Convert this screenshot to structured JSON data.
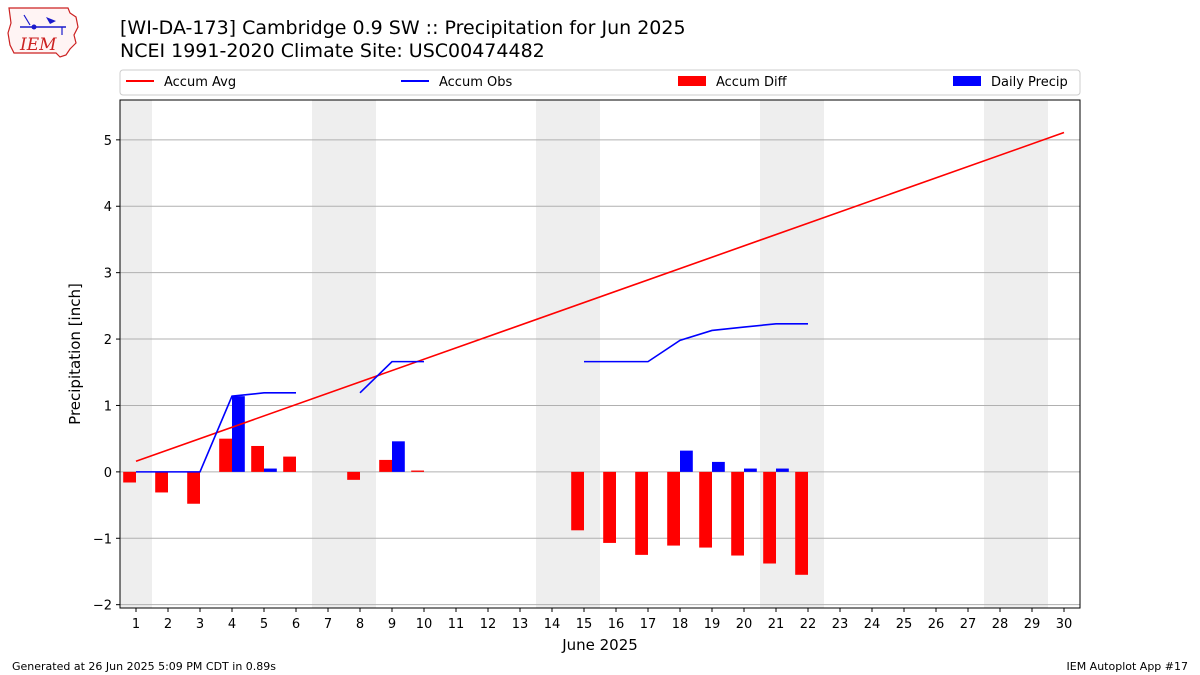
{
  "header": {
    "title_line1": "[WI-DA-173] Cambridge 0.9 SW :: Precipitation for Jun 2025",
    "title_line2": "NCEI 1991-2020 Climate Site: USC00474482",
    "logo_text": "IEM"
  },
  "footer": {
    "left": "Generated at 26 Jun 2025 5:09 PM CDT in 0.89s",
    "right": "IEM Autoplot App #17"
  },
  "colors": {
    "avg": "#ff0000",
    "obs": "#0000ff",
    "diff": "#ff0000",
    "daily": "#0000ff",
    "weekend": "#eeeeee",
    "grid": "#b0b0b0"
  },
  "chart_data": {
    "type": "bar",
    "xlabel": "June 2025",
    "ylabel": "Precipitation [inch]",
    "xlim": [
      0.5,
      30.5
    ],
    "ylim": [
      -2.05,
      5.6
    ],
    "x_ticks": [
      1,
      2,
      3,
      4,
      5,
      6,
      7,
      8,
      9,
      10,
      11,
      12,
      13,
      14,
      15,
      16,
      17,
      18,
      19,
      20,
      21,
      22,
      23,
      24,
      25,
      26,
      27,
      28,
      29,
      30
    ],
    "y_ticks": [
      -2,
      -1,
      0,
      1,
      2,
      3,
      4,
      5
    ],
    "y_tick_labels": [
      "−2",
      "−1",
      "0",
      "1",
      "2",
      "3",
      "4",
      "5"
    ],
    "grid": "horizontal",
    "legend_position": "top",
    "legend": [
      "Accum Avg",
      "Accum Obs",
      "Accum Diff",
      "Daily Precip"
    ],
    "weekend_bands": [
      [
        0.5,
        1.5
      ],
      [
        6.5,
        8.5
      ],
      [
        13.5,
        15.5
      ],
      [
        20.5,
        22.5
      ],
      [
        27.5,
        29.5
      ]
    ],
    "days": [
      1,
      2,
      3,
      4,
      5,
      6,
      7,
      8,
      9,
      10,
      11,
      12,
      13,
      14,
      15,
      16,
      17,
      18,
      19,
      20,
      21,
      22,
      23,
      24,
      25,
      26,
      27,
      28,
      29,
      30
    ],
    "series": [
      {
        "name": "Accum Avg",
        "kind": "line",
        "x": [
          1,
          30
        ],
        "values": [
          0.16,
          5.11
        ]
      },
      {
        "name": "Accum Obs",
        "kind": "line",
        "segments": [
          {
            "x": [
              1,
              2,
              3,
              4,
              5,
              6
            ],
            "values": [
              0.0,
              0.0,
              0.0,
              1.14,
              1.19,
              1.19
            ]
          },
          {
            "x": [
              8,
              9,
              10
            ],
            "values": [
              1.19,
              1.66,
              1.66
            ]
          },
          {
            "x": [
              15,
              16,
              17,
              18,
              19,
              20,
              21,
              22
            ],
            "values": [
              1.66,
              1.66,
              1.66,
              1.98,
              2.13,
              2.18,
              2.23,
              2.23
            ]
          }
        ]
      },
      {
        "name": "Accum Diff",
        "kind": "bar",
        "x": [
          1,
          2,
          3,
          4,
          5,
          6,
          8,
          9,
          10,
          15,
          16,
          17,
          18,
          19,
          20,
          21,
          22
        ],
        "values": [
          -0.16,
          -0.31,
          -0.48,
          0.5,
          0.39,
          0.23,
          -0.12,
          0.18,
          0.02,
          -0.88,
          -1.07,
          -1.25,
          -1.11,
          -1.14,
          -1.26,
          -1.38,
          -1.55
        ]
      },
      {
        "name": "Daily Precip",
        "kind": "bar",
        "x": [
          4,
          5,
          9,
          18,
          19,
          20,
          21
        ],
        "values": [
          1.14,
          0.05,
          0.46,
          0.32,
          0.15,
          0.05,
          0.05
        ]
      }
    ]
  }
}
